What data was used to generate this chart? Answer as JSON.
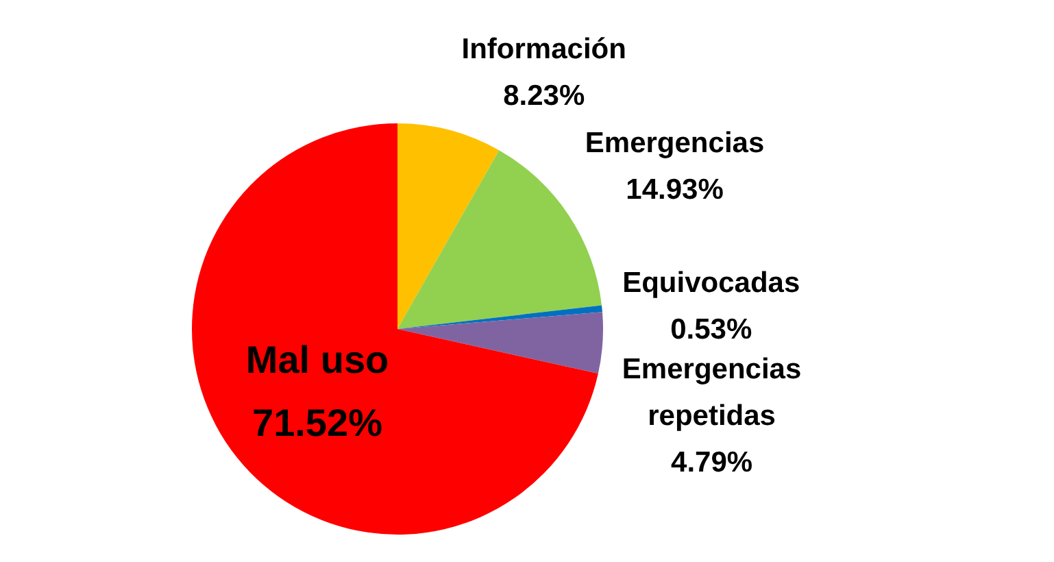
{
  "chart_data": {
    "type": "pie",
    "categories": [
      "Información",
      "Emergencias",
      "Equivocadas",
      "Emergencias repetidas",
      "Mal uso"
    ],
    "values": [
      8.23,
      14.93,
      0.53,
      4.79,
      71.52
    ],
    "colors": [
      "#ffc000",
      "#92d050",
      "#0070c0",
      "#8064a2",
      "#ff0000"
    ],
    "value_labels": [
      "8.23%",
      "14.93%",
      "0.53%",
      "4.79%",
      "71.52%"
    ]
  }
}
